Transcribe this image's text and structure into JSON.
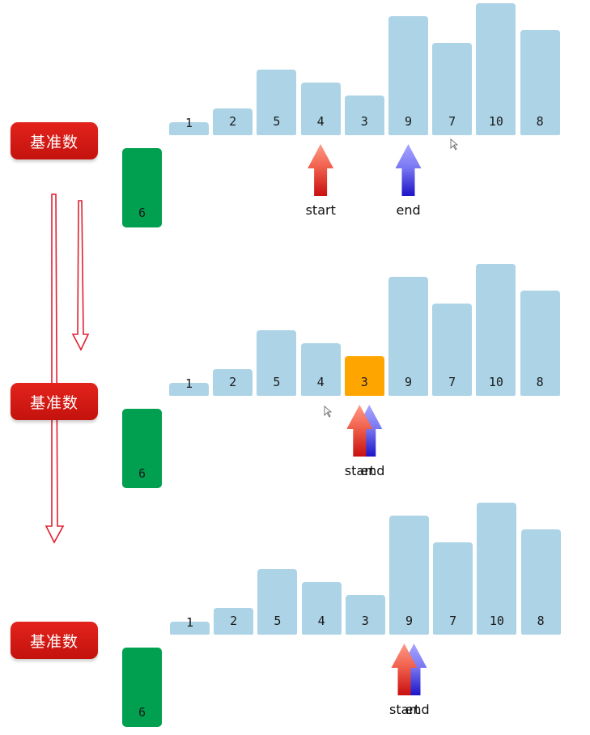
{
  "pivot_label": "基准数",
  "pivot_value": "6",
  "values": [
    "1",
    "2",
    "5",
    "4",
    "3",
    "9",
    "7",
    "10",
    "8"
  ],
  "heights": [
    1,
    2,
    5,
    4,
    3,
    9,
    7,
    10,
    8
  ],
  "rows": [
    {
      "start_label": "start",
      "end_label": "end",
      "start_index": 3,
      "end_index": 5,
      "highlight_index": -1
    },
    {
      "start_label": "start",
      "end_label": "end",
      "start_index": 4,
      "end_index": 4,
      "highlight_index": 4
    },
    {
      "start_label": "start",
      "end_label": "end",
      "start_index": 5,
      "end_index": 5,
      "highlight_index": -1
    }
  ]
}
